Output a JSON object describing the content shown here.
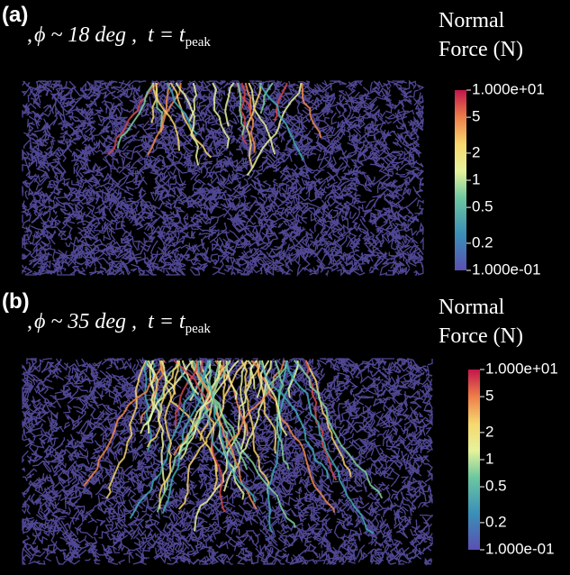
{
  "panels": [
    {
      "label": "(a)",
      "prefix": ",",
      "angle": "ϕ ~ 18 deg ,",
      "time": "t = t",
      "subscript": "peak",
      "colorbar": {
        "title": [
          "Normal",
          "Force (N)"
        ],
        "ticks": [
          {
            "value": 10,
            "label": "1.000e+01"
          },
          5,
          2,
          1,
          0.5,
          0.2,
          {
            "value": 0.1,
            "label": "1.000e-01"
          }
        ]
      }
    },
    {
      "label": "(b)",
      "prefix": ",",
      "angle": "ϕ ~ 35 deg ,",
      "time": "t = t",
      "subscript": "peak",
      "colorbar": {
        "title": [
          "Normal",
          "Force (N)"
        ],
        "ticks": [
          {
            "value": 10,
            "label": "1.000e+01"
          },
          5,
          2,
          1,
          0.5,
          0.2,
          {
            "value": 0.1,
            "label": "1.000e-01"
          }
        ]
      }
    }
  ]
}
